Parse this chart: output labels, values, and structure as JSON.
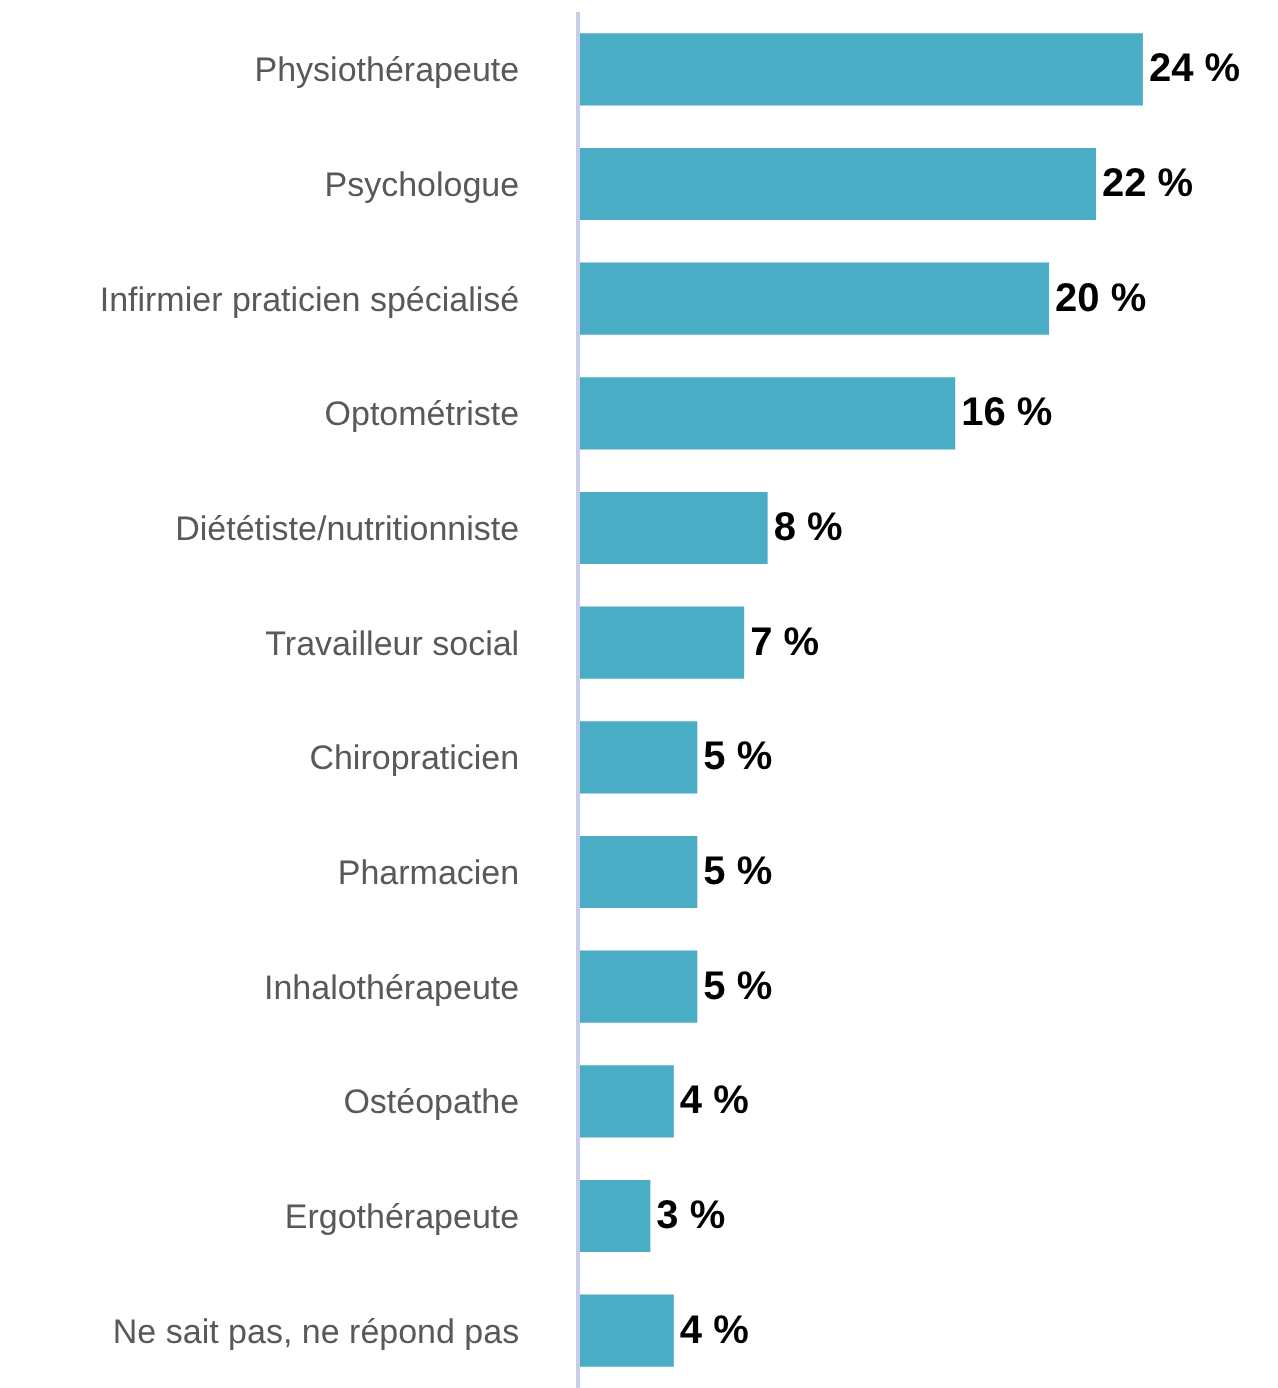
{
  "chart_data": {
    "type": "bar",
    "orientation": "horizontal",
    "categories": [
      "Physiothérapeute",
      "Psychologue",
      "Infirmier praticien spécialisé",
      "Optométriste",
      "Diététiste/nutritionniste",
      "Travailleur social",
      "Chiropraticien",
      "Pharmacien",
      "Inhalothérapeute",
      "Ostéopathe",
      "Ergothérapeute",
      "Ne sait pas, ne répond pas"
    ],
    "values": [
      24,
      22,
      20,
      16,
      8,
      7,
      5,
      5,
      5,
      4,
      3,
      4
    ],
    "value_labels": [
      "24 %",
      "22 %",
      "20 %",
      "16 %",
      "8 %",
      "7 %",
      "5 %",
      "5 %",
      "5 %",
      "4 %",
      "3 %",
      "4 %"
    ],
    "color": "#4bacc6"
  }
}
